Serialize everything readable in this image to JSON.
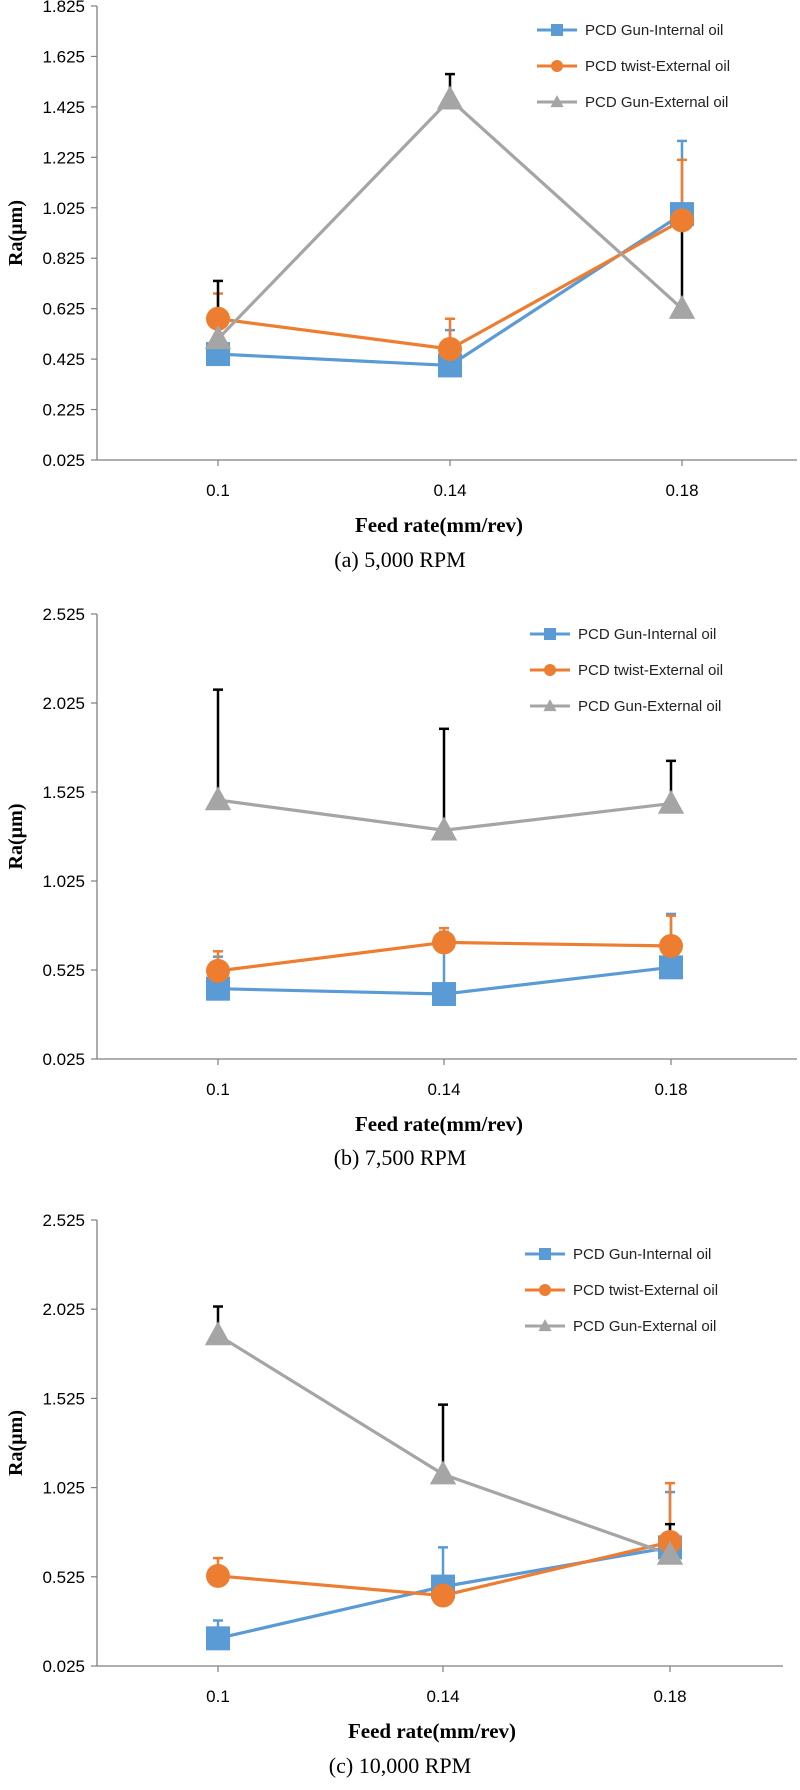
{
  "chart_data": [
    {
      "type": "line",
      "caption": "(a) 5,000 RPM",
      "xlabel": "Feed rate(mm/rev)",
      "ylabel": "Ra(µm)",
      "categories": [
        "0.1",
        "0.14",
        "0.18"
      ],
      "ylim": [
        0.025,
        1.825
      ],
      "yticks": [
        "0.025",
        "0.225",
        "0.425",
        "0.625",
        "0.825",
        "1.025",
        "1.225",
        "1.425",
        "1.625",
        "1.825"
      ],
      "legend_position": "top-right",
      "series": [
        {
          "name": "PCD Gun-Internal oil",
          "color": "#5b9bd5",
          "marker": "square",
          "values": [
            0.445,
            0.4,
            1.0
          ],
          "error_up": [
            0.06,
            0.14,
            0.29
          ]
        },
        {
          "name": "PCD twist-External oil",
          "color": "#ed7d31",
          "marker": "circle",
          "values": [
            0.585,
            0.465,
            0.975
          ],
          "error_up": [
            0.1,
            0.12,
            0.24
          ]
        },
        {
          "name": "PCD Gun-External oil",
          "color": "#a5a5a5",
          "marker": "triangle",
          "values": [
            0.505,
            1.455,
            0.625
          ],
          "error_up": [
            0.23,
            0.1,
            0.33
          ]
        }
      ]
    },
    {
      "type": "line",
      "caption": "(b) 7,500 RPM",
      "xlabel": "Feed rate(mm/rev)",
      "ylabel": "Ra(µm)",
      "categories": [
        "0.1",
        "0.14",
        "0.18"
      ],
      "ylim": [
        0.025,
        2.525
      ],
      "yticks": [
        "0.025",
        "0.525",
        "1.025",
        "1.525",
        "2.025",
        "2.525"
      ],
      "legend_position": "top-right",
      "series": [
        {
          "name": "PCD Gun-Internal oil",
          "color": "#5b9bd5",
          "marker": "square",
          "values": [
            0.42,
            0.39,
            0.54
          ],
          "error_up": [
            0.18,
            0.35,
            0.3
          ]
        },
        {
          "name": "PCD twist-External oil",
          "color": "#ed7d31",
          "marker": "circle",
          "values": [
            0.52,
            0.68,
            0.66
          ],
          "error_up": [
            0.11,
            0.08,
            0.17
          ]
        },
        {
          "name": "PCD Gun-External oil",
          "color": "#a5a5a5",
          "marker": "triangle",
          "values": [
            1.48,
            1.31,
            1.46
          ],
          "error_up": [
            0.62,
            0.57,
            0.24
          ]
        }
      ]
    },
    {
      "type": "line",
      "caption": "(c) 10,000 RPM",
      "xlabel": "Feed rate(mm/rev)",
      "ylabel": "Ra(µm)",
      "categories": [
        "0.1",
        "0.14",
        "0.18"
      ],
      "ylim": [
        0.025,
        2.525
      ],
      "yticks": [
        "0.025",
        "0.525",
        "1.025",
        "1.525",
        "2.025",
        "2.525"
      ],
      "legend_position": "top-right",
      "series": [
        {
          "name": "PCD Gun-Internal oil",
          "color": "#5b9bd5",
          "marker": "square",
          "values": [
            0.18,
            0.47,
            0.69
          ],
          "error_up": [
            0.1,
            0.22,
            0.31
          ]
        },
        {
          "name": "PCD twist-External oil",
          "color": "#ed7d31",
          "marker": "circle",
          "values": [
            0.53,
            0.42,
            0.72
          ],
          "error_up": [
            0.1,
            0.06,
            0.33
          ]
        },
        {
          "name": "PCD Gun-External oil",
          "color": "#a5a5a5",
          "marker": "triangle",
          "values": [
            1.88,
            1.1,
            0.65
          ],
          "error_up": [
            0.16,
            0.39,
            0.17
          ]
        }
      ]
    }
  ]
}
